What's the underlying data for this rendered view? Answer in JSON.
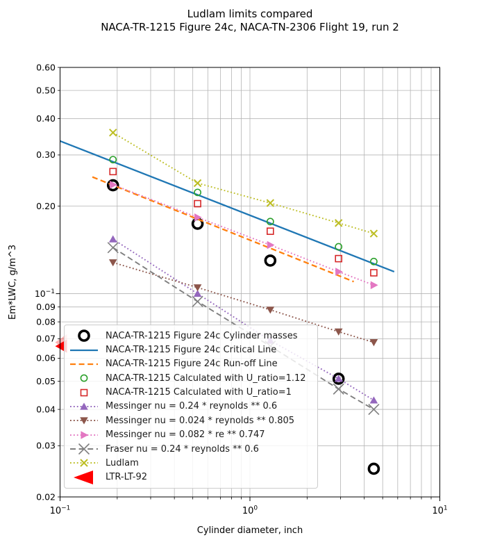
{
  "title": {
    "line1": "Ludlam limits compared",
    "line2": "NACA-TR-1215 Figure 24c, NACA-TN-2306 Flight 19, run 2"
  },
  "chart_data": {
    "type": "line",
    "title": "Ludlam limits compared\nNACA-TR-1215 Figure 24c, NACA-TN-2306 Flight 19, run 2",
    "xlabel": "Cylinder diameter, inch",
    "ylabel": "Em*LWC, g/m^3",
    "xscale": "log",
    "yscale": "log",
    "xlim": [
      0.1,
      10
    ],
    "ylim": [
      0.02,
      0.6
    ],
    "grid": "both",
    "legend_position": "lower left",
    "x_ticks": [
      {
        "v": 0.1,
        "mant": "10",
        "exp": "−1"
      },
      {
        "v": 1,
        "mant": "10",
        "exp": "0"
      },
      {
        "v": 10,
        "mant": "10",
        "exp": "1"
      }
    ],
    "y_ticks": [
      {
        "v": 0.6,
        "label": "0.60"
      },
      {
        "v": 0.5,
        "label": "0.50"
      },
      {
        "v": 0.4,
        "label": "0.40"
      },
      {
        "v": 0.3,
        "label": "0.30"
      },
      {
        "v": 0.2,
        "label": "0.20"
      },
      {
        "v": 0.1,
        "mant": "10",
        "exp": "−1",
        "major": true
      },
      {
        "v": 0.09,
        "label": "0.09"
      },
      {
        "v": 0.08,
        "label": "0.08"
      },
      {
        "v": 0.07,
        "label": "0.07"
      },
      {
        "v": 0.06,
        "label": "0.06"
      },
      {
        "v": 0.05,
        "label": "0.05"
      },
      {
        "v": 0.04,
        "label": "0.04"
      },
      {
        "v": 0.03,
        "label": "0.03"
      },
      {
        "v": 0.02,
        "label": "0.02"
      }
    ],
    "cylinder_diameters_inch": [
      0.19,
      0.53,
      1.28,
      2.93,
      4.49
    ],
    "series": [
      {
        "label": "NACA-TR-1215 Figure 24c Cylinder masses",
        "color": "#000000",
        "marker": "open-circle-thick",
        "linestyle": "none",
        "x": [
          0.19,
          0.53,
          1.28,
          2.93,
          4.49
        ],
        "y": [
          0.236,
          0.174,
          0.13,
          0.051,
          0.025
        ]
      },
      {
        "label": "NACA-TR-1215 Figure 24c Critical Line",
        "color": "#1f77b4",
        "marker": "none",
        "linestyle": "solid",
        "x": [
          0.1,
          5.75
        ],
        "y": [
          0.335,
          0.119
        ]
      },
      {
        "label": "NACA-TR-1215 Figure 24c Run-off Line",
        "color": "#ff7f0e",
        "marker": "none",
        "linestyle": "dashed",
        "x": [
          0.148,
          3.52
        ],
        "y": [
          0.252,
          0.11
        ]
      },
      {
        "label": "NACA-TR-1215 Calculated with U_ratio=1.12",
        "color": "#2ca02c",
        "marker": "open-circle",
        "linestyle": "none",
        "x": [
          0.19,
          0.53,
          1.28,
          2.93,
          4.49
        ],
        "y": [
          0.289,
          0.223,
          0.177,
          0.145,
          0.129
        ]
      },
      {
        "label": "NACA-TR-1215 Calculated with U_ratio=1",
        "color": "#d62728",
        "marker": "open-square",
        "linestyle": "none",
        "x": [
          0.19,
          0.53,
          1.28,
          2.93,
          4.49
        ],
        "y": [
          0.263,
          0.204,
          0.164,
          0.132,
          0.118
        ]
      },
      {
        "label": "Messinger nu = 0.24 * reynolds ** 0.6",
        "color": "#9467bd",
        "marker": "triangle-up",
        "linestyle": "dotted",
        "x": [
          0.19,
          0.53,
          1.28,
          2.93,
          4.49
        ],
        "y": [
          0.154,
          0.1,
          0.069,
          0.051,
          0.043
        ]
      },
      {
        "label": "Messinger nu = 0.024 * reynolds ** 0.805",
        "color": "#8c564b",
        "marker": "triangle-down",
        "linestyle": "dotted",
        "x": [
          0.19,
          0.53,
          1.28,
          2.93,
          4.49
        ],
        "y": [
          0.128,
          0.105,
          0.088,
          0.074,
          0.068
        ]
      },
      {
        "label": "Messinger nu = 0.082 * re ** 0.747",
        "color": "#e377c2",
        "marker": "triangle-right",
        "linestyle": "dotted",
        "x": [
          0.19,
          0.53,
          1.28,
          2.93,
          4.49
        ],
        "y": [
          0.237,
          0.183,
          0.147,
          0.119,
          0.107
        ]
      },
      {
        "label": "Fraser nu = 0.24 * reynolds ** 0.6",
        "color": "#7f7f7f",
        "marker": "x-large",
        "linestyle": "dashed",
        "x": [
          0.19,
          0.53,
          1.28,
          2.93,
          4.49
        ],
        "y": [
          0.144,
          0.094,
          0.066,
          0.047,
          0.04
        ]
      },
      {
        "label": "Ludlam",
        "color": "#bcbd22",
        "marker": "x-small",
        "linestyle": "dotted",
        "x": [
          0.19,
          0.53,
          1.28,
          2.93,
          4.49
        ],
        "y": [
          0.358,
          0.24,
          0.205,
          0.175,
          0.161
        ]
      },
      {
        "label": "LTR-LT-92",
        "color": "#ff0000",
        "marker": "triangle-left-big",
        "linestyle": "none",
        "points": [
          {
            "x": 0.1,
            "y": 0.068,
            "alpha": 0.3,
            "size": 24
          },
          {
            "x": 0.1,
            "y": 0.066,
            "alpha": 1.0,
            "size": 19
          }
        ]
      }
    ]
  }
}
